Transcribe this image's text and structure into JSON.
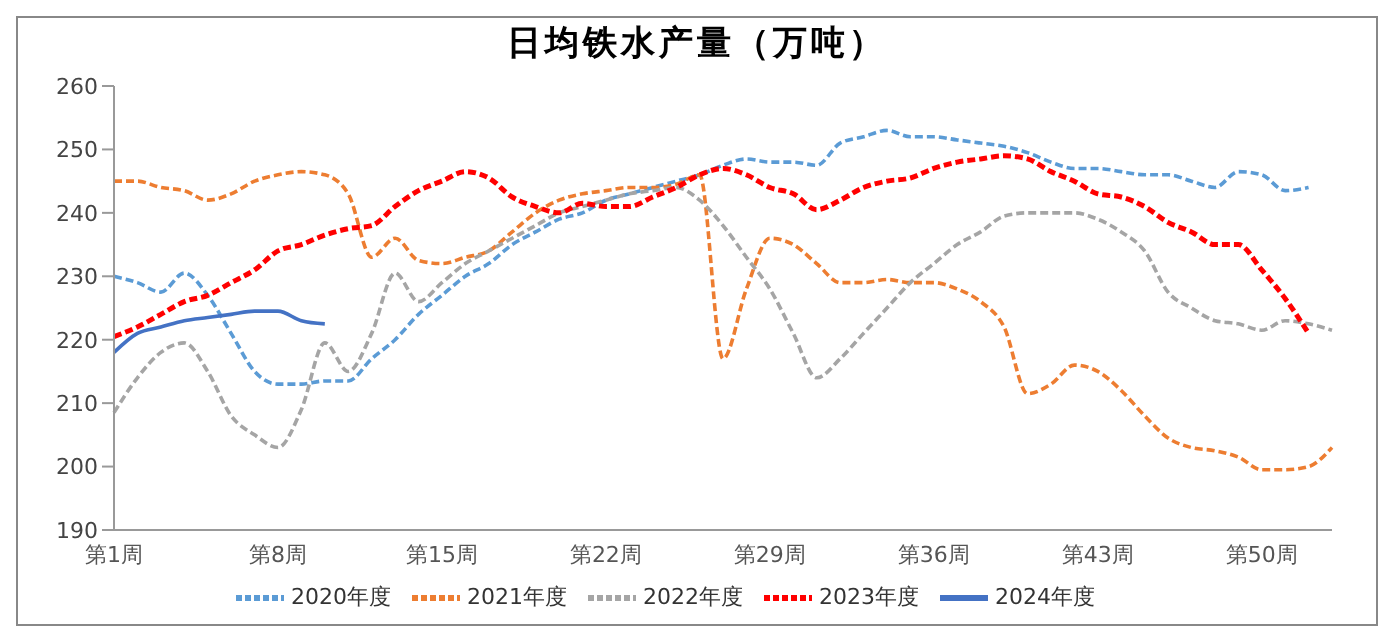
{
  "chart_data": {
    "type": "line",
    "title": "日均铁水产量（万吨）",
    "categories": [
      "第1周",
      null,
      null,
      null,
      null,
      null,
      null,
      "第8周",
      null,
      null,
      null,
      null,
      null,
      null,
      "第15周",
      null,
      null,
      null,
      null,
      null,
      null,
      "第22周",
      null,
      null,
      null,
      null,
      null,
      null,
      "第29周",
      null,
      null,
      null,
      null,
      null,
      null,
      "第36周",
      null,
      null,
      null,
      null,
      null,
      null,
      "第43周",
      null,
      null,
      null,
      null,
      null,
      null,
      "第50周",
      null,
      null,
      null
    ],
    "ylim": [
      190,
      260
    ],
    "yticks": [
      190,
      200,
      210,
      220,
      230,
      240,
      250,
      260
    ],
    "grid": false,
    "legend": "bottom",
    "marker": "none",
    "series": [
      {
        "name": "2020年度",
        "color": "#5b9bd5",
        "line_style": "dashed",
        "values": [
          230,
          229,
          227.5,
          230.5,
          227,
          221,
          215,
          213,
          213,
          213.5,
          213.5,
          217,
          220,
          224,
          227,
          230,
          232,
          235,
          237,
          239,
          240,
          242,
          243,
          244,
          245,
          246,
          247.5,
          248.5,
          248,
          248,
          247.5,
          251,
          252,
          253,
          252,
          252,
          251.5,
          251,
          250.5,
          249.5,
          248,
          247,
          247,
          246.5,
          246,
          246,
          245,
          244,
          246.5,
          246,
          243.5,
          244,
          null
        ]
      },
      {
        "name": "2021年度",
        "color": "#ed7d31",
        "line_style": "dashed",
        "values": [
          245,
          245,
          244,
          243.5,
          242,
          243,
          245,
          246,
          246.5,
          246,
          243,
          233,
          236,
          232.5,
          232,
          233,
          234,
          237,
          240,
          242,
          243,
          243.5,
          244,
          244,
          244.5,
          246,
          217,
          228,
          236,
          235,
          232,
          229,
          229,
          229.5,
          229,
          229,
          228,
          226,
          222,
          211.5,
          213,
          216,
          215,
          212,
          208,
          204.5,
          203,
          202.5,
          201.5,
          199.5,
          199.5,
          200,
          203
        ]
      },
      {
        "name": "2022年度",
        "color": "#a5a5a5",
        "line_style": "dashed",
        "values": [
          208.5,
          214,
          218,
          219.5,
          215,
          208,
          205,
          203,
          209,
          219.5,
          215,
          221,
          230.5,
          226,
          229,
          232,
          234,
          236,
          238,
          240,
          241,
          242,
          243,
          243.5,
          244,
          242,
          238,
          233,
          228,
          221,
          214,
          217,
          221,
          225,
          229,
          232,
          235,
          237,
          239.5,
          240,
          240,
          240,
          239,
          237,
          234,
          227.5,
          225,
          223,
          222.5,
          221.5,
          223,
          222.5,
          221.5
        ]
      },
      {
        "name": "2023年度",
        "color": "#ff0000",
        "line_style": "dashed",
        "values": [
          220.5,
          222,
          224,
          226,
          227,
          229,
          231,
          234,
          235,
          236.5,
          237.5,
          238,
          241,
          243.5,
          245,
          246.5,
          245.5,
          242.5,
          241,
          240,
          241.5,
          241,
          241,
          242.5,
          244,
          246,
          247,
          246,
          244,
          243,
          240.5,
          242,
          244,
          245,
          245.5,
          247,
          248,
          248.5,
          249,
          248.5,
          246.5,
          245,
          243,
          242.5,
          241,
          238.5,
          237,
          235,
          235,
          231,
          226.5,
          221,
          null
        ]
      },
      {
        "name": "2024年度",
        "color": "#4472c4",
        "line_style": "solid",
        "values": [
          218,
          221,
          222,
          223,
          223.5,
          224,
          224.5,
          224.5,
          223,
          222.5,
          null,
          null,
          null,
          null,
          null,
          null,
          null,
          null,
          null,
          null,
          null,
          null,
          null,
          null,
          null,
          null,
          null,
          null,
          null,
          null,
          null,
          null,
          null,
          null,
          null,
          null,
          null,
          null,
          null,
          null,
          null,
          null,
          null,
          null,
          null,
          null,
          null,
          null,
          null,
          null,
          null,
          null,
          null
        ]
      }
    ]
  }
}
